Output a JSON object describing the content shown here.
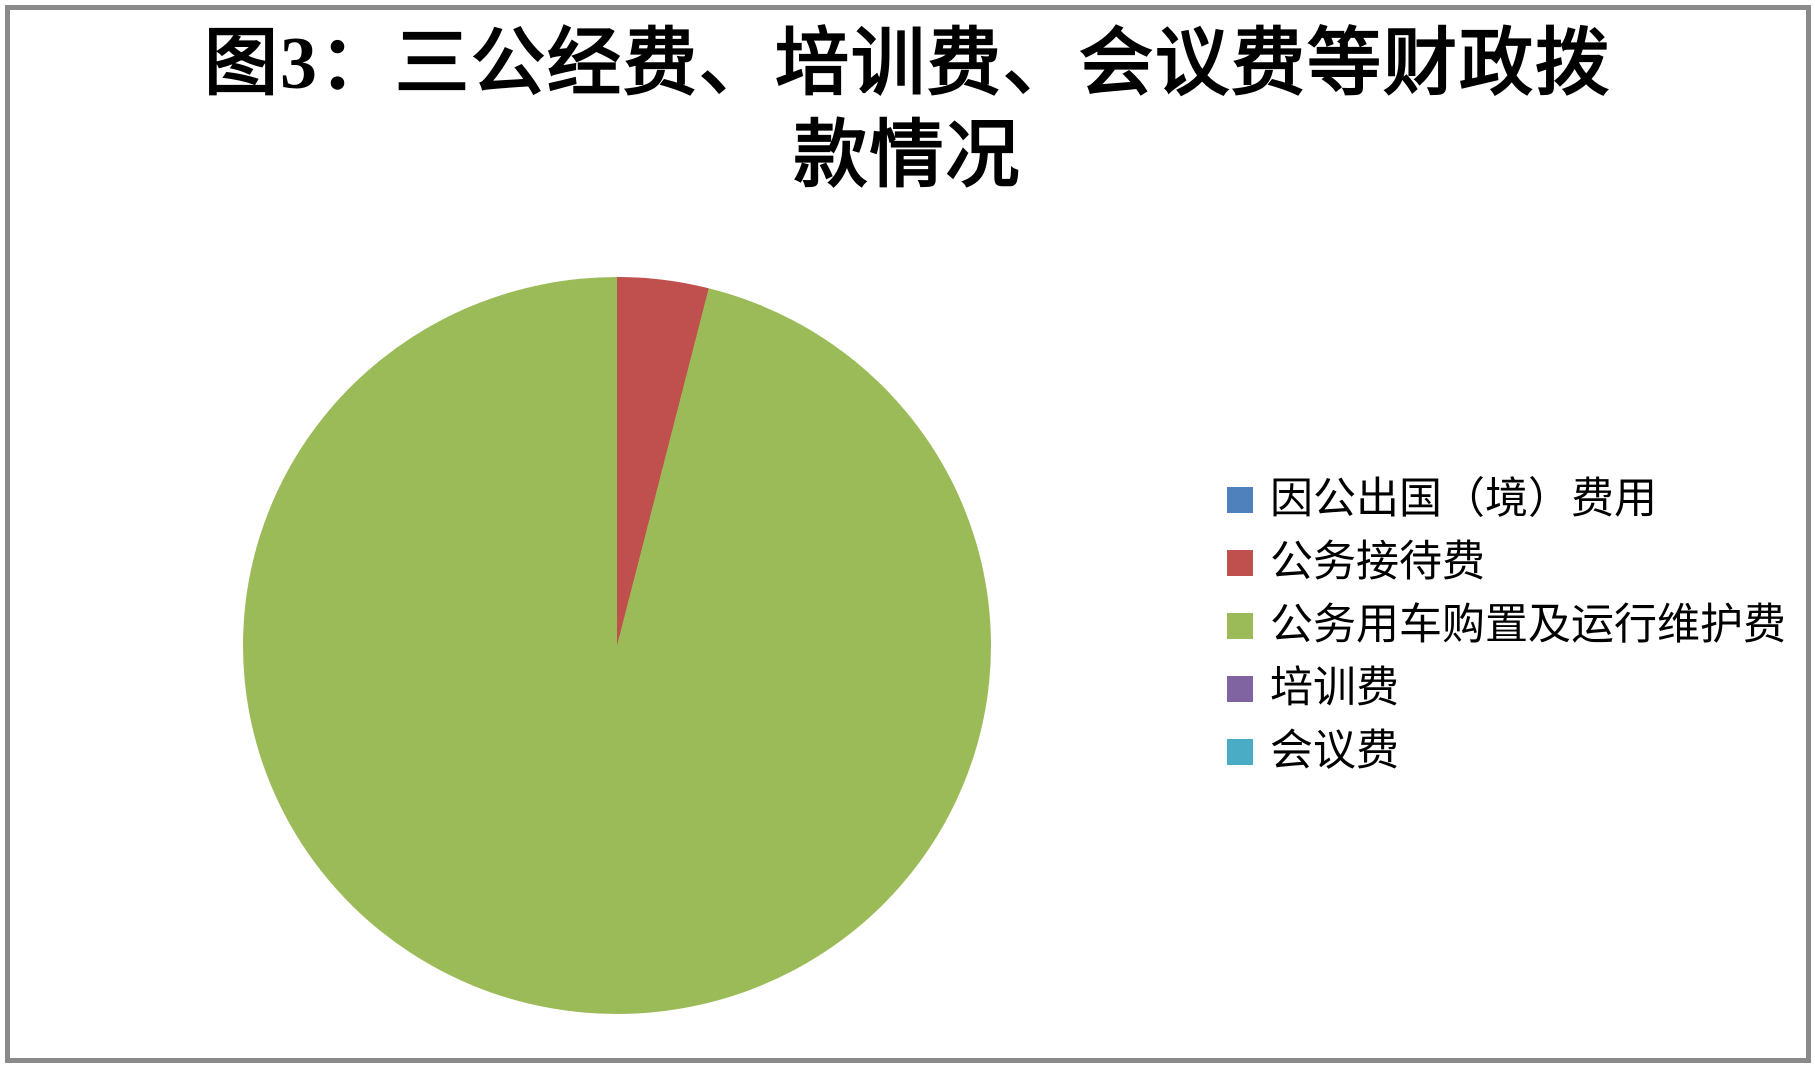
{
  "frame": {
    "border_color": "#8A8A8A",
    "background": "#FFFFFF"
  },
  "title": {
    "text": "图3：三公经费、培训费、会议费等财政拨款情况",
    "lines": [
      "图3：三公经费、培训费、会议费等财政拨",
      "款情况"
    ]
  },
  "chart_data": {
    "type": "pie",
    "title": "图3：三公经费、培训费、会议费等财政拨款情况",
    "categories": [
      "因公出国（境）费用",
      "公务接待费",
      "公务用车购置及运行维护费",
      "培训费",
      "会议费"
    ],
    "values_percent": [
      0,
      4,
      96,
      0,
      0
    ],
    "colors": [
      "#4F81BD",
      "#C0504D",
      "#9BBB59",
      "#8064A2",
      "#4BACC6"
    ],
    "start_angle_deg": 0,
    "direction": "clockwise",
    "legend_position": "right",
    "data_labels_shown": false
  },
  "legend": {
    "items": [
      {
        "label": "因公出国（境）费用",
        "color": "#4F81BD"
      },
      {
        "label": "公务接待费",
        "color": "#C0504D"
      },
      {
        "label": "公务用车购置及运行维护费",
        "color": "#9BBB59"
      },
      {
        "label": "培训费",
        "color": "#8064A2"
      },
      {
        "label": "会议费",
        "color": "#4BACC6"
      }
    ]
  }
}
